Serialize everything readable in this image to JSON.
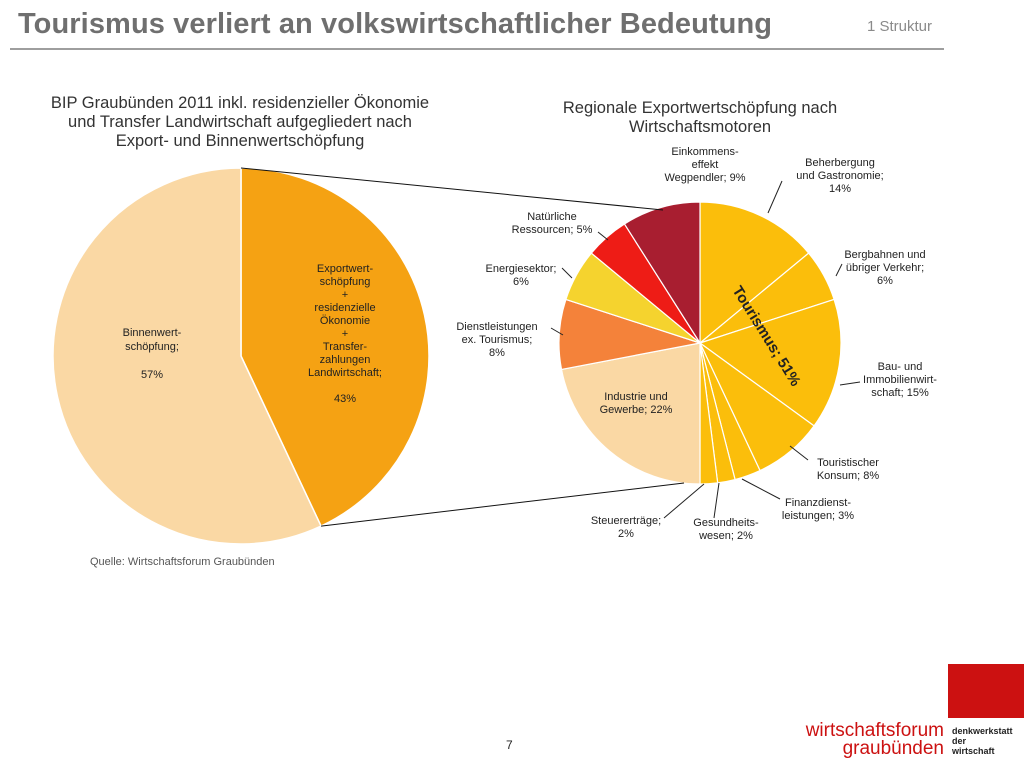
{
  "slide": {
    "title": "Tourismus verliert an volkswirtschaftlicher Bedeutung",
    "section": "1 Struktur",
    "source": "Quelle: Wirtschaftsforum Graubünden",
    "page_number": "7"
  },
  "brand": {
    "name_lines": [
      "wirtschaftsforum",
      "graubünden"
    ],
    "tagline_lines": [
      "denkwerkstatt",
      "der",
      "wirtschaft"
    ],
    "color": "#cc1111"
  },
  "chart_data": [
    {
      "type": "pie",
      "title_lines": [
        "BIP Graubünden 2011 inkl. residenzieller Ökonomie",
        "und Transfer Landwirtschaft aufgegliedert nach",
        "Export- und Binnenwertschöpfung"
      ],
      "slices": [
        {
          "label_lines": [
            "Exportwert-",
            "schöpfung",
            "+",
            "residenzielle",
            "Ökonomie",
            "+",
            "Transfer-",
            "zahlungen",
            "Landwirtschaft;",
            "",
            "43%"
          ],
          "value": 43,
          "color": "#f5a213"
        },
        {
          "label_lines": [
            "Binnenwert-",
            "schöpfung;",
            "",
            "57%"
          ],
          "value": 57,
          "color": "#fad8a4"
        }
      ]
    },
    {
      "type": "pie",
      "title_lines": [
        "Regionale Exportwertschöpfung nach",
        "Wirtschaftsmotoren"
      ],
      "group_label": "Tourismus; 51%",
      "group_value": 51,
      "slices": [
        {
          "label_lines": [
            "Beherbergung",
            "und Gastronomie;",
            "14%"
          ],
          "value": 14,
          "color": "#fbbe0b"
        },
        {
          "label_lines": [
            "Bergbahnen und",
            "übriger Verkehr;",
            "6%"
          ],
          "value": 6,
          "color": "#fbbe0b"
        },
        {
          "label_lines": [
            "Bau- und",
            "Immobilienwirt-",
            "schaft; 15%"
          ],
          "value": 15,
          "color": "#fbbe0b"
        },
        {
          "label_lines": [
            "Touristischer",
            "Konsum; 8%"
          ],
          "value": 8,
          "color": "#fbbe0b"
        },
        {
          "label_lines": [
            "Finanzdienst-",
            "leistungen; 3%"
          ],
          "value": 3,
          "color": "#fbbe0b"
        },
        {
          "label_lines": [
            "Gesundheits-",
            "wesen; 2%"
          ],
          "value": 2,
          "color": "#fbbe0b"
        },
        {
          "label_lines": [
            "Steuererträge;",
            "2%"
          ],
          "value": 2,
          "color": "#fbbe0b"
        },
        {
          "label_lines": [
            "Industrie und",
            "Gewerbe; 22%"
          ],
          "value": 22,
          "color": "#fad8a4"
        },
        {
          "label_lines": [
            "Dienstleistungen",
            "ex. Tourismus;",
            "8%"
          ],
          "value": 8,
          "color": "#f4823a"
        },
        {
          "label_lines": [
            "Energiesektor;",
            "6%"
          ],
          "value": 6,
          "color": "#f5d32e"
        },
        {
          "label_lines": [
            "Natürliche",
            "Ressourcen; 5%"
          ],
          "value": 5,
          "color": "#ee1c16"
        },
        {
          "label_lines": [
            "Einkommens-",
            "effekt",
            "Wegpendler; 9%"
          ],
          "value": 9,
          "color": "#a81e30"
        }
      ]
    }
  ]
}
